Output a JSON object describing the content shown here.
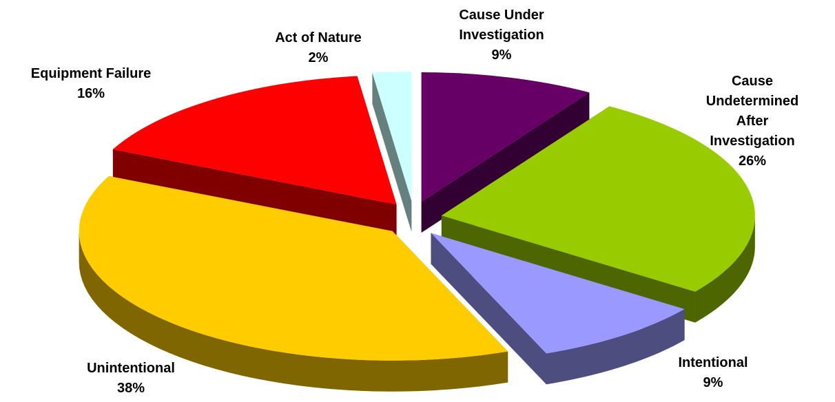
{
  "chart_data": {
    "type": "pie",
    "categories": [
      "Cause Under\nInvestigation",
      "Cause\nUndetermined\nAfter Investigation",
      "Intentional",
      "Unintentional",
      "Equipment Failure",
      "Act of Nature"
    ],
    "values": [
      9,
      26,
      9,
      38,
      16,
      2
    ],
    "value_labels": [
      "9%",
      "26%",
      "9%",
      "38%",
      "16%",
      "2%"
    ],
    "colors": [
      "#660066",
      "#99cc00",
      "#9999ff",
      "#ffcc00",
      "#ff0000",
      "#ccffff"
    ]
  }
}
